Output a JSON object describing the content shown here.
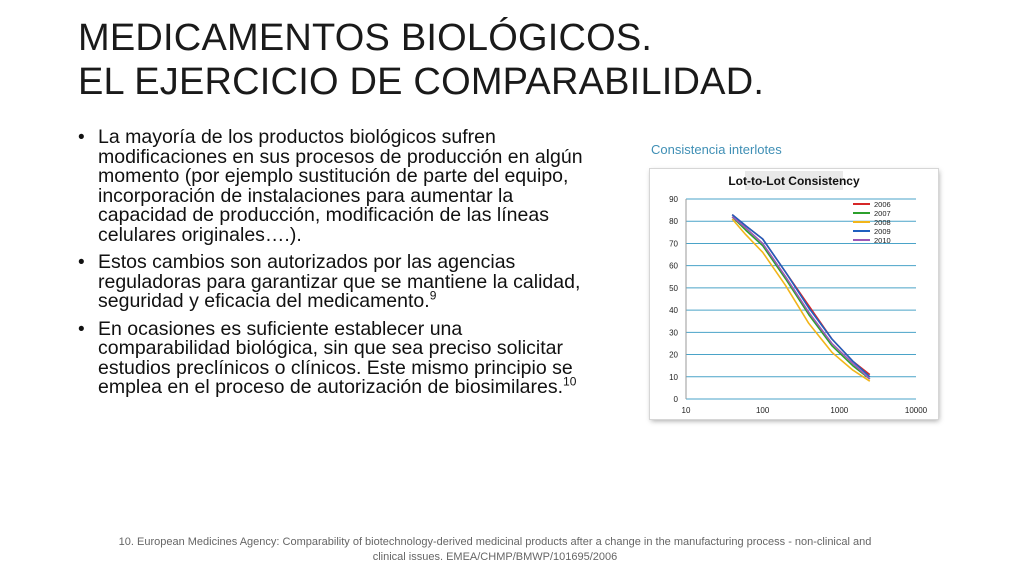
{
  "title": {
    "line1": "MEDICAMENTOS BIOLÓGICOS.",
    "line2": "EL EJERCICIO DE COMPARABILIDAD."
  },
  "bullets": [
    {
      "text": "La mayoría de los productos biológicos sufren modificaciones en sus procesos de producción en algún momento (por ejemplo sustitución de parte del equipo, incorporación de instalaciones para aumentar la capacidad de producción, modificación de las líneas celulares originales….).",
      "sup": ""
    },
    {
      "text": "Estos cambios son autorizados por las agencias reguladoras para garantizar que se mantiene la calidad, seguridad y eficacia del medicamento.",
      "sup": "9"
    },
    {
      "text": "En ocasiones es suficiente establecer una comparabilidad biológica, sin que sea preciso solicitar estudios preclínicos o clínicos. Este mismo principio se emplea en el proceso de autorización de biosimilares.",
      "sup": "10"
    }
  ],
  "figure_caption": "Consistencia interlotes",
  "footnote": "10. European Medicines Agency: Comparability of biotechnology-derived medicinal products after a change in the manufacturing process - non-clinical and clinical issues. EMEA/CHMP/BMWP/101695/2006",
  "chart_data": {
    "type": "line",
    "title": "Lot-to-Lot Consistency",
    "xscale": "log",
    "xlim": [
      10,
      10000
    ],
    "ylim": [
      0,
      90
    ],
    "xticks": [
      10,
      100,
      1000,
      10000
    ],
    "xtick_labels": [
      "10",
      "100",
      "1000",
      "10000"
    ],
    "yticks": [
      0,
      10,
      20,
      30,
      40,
      50,
      60,
      70,
      80,
      90
    ],
    "grid": "horizontal",
    "legend": "top-right",
    "series": [
      {
        "name": "2006",
        "color": "#d62728",
        "x": [
          40,
          60,
          100,
          200,
          400,
          800,
          1500,
          2500
        ],
        "y": [
          83,
          78,
          72,
          57,
          42,
          27,
          17,
          11
        ]
      },
      {
        "name": "2007",
        "color": "#2ca02c",
        "x": [
          40,
          60,
          100,
          200,
          400,
          800,
          1500,
          2500
        ],
        "y": [
          82,
          76,
          69,
          54,
          38,
          24,
          15,
          9
        ]
      },
      {
        "name": "2008",
        "color": "#f2b51a",
        "x": [
          40,
          60,
          100,
          200,
          400,
          800,
          1500,
          2500
        ],
        "y": [
          81,
          74,
          66,
          51,
          34,
          21,
          13,
          8
        ]
      },
      {
        "name": "2009",
        "color": "#1f5fbf",
        "x": [
          40,
          60,
          100,
          200,
          400,
          800,
          1500,
          2500
        ],
        "y": [
          83,
          78,
          72,
          57,
          41,
          27,
          17,
          10
        ]
      },
      {
        "name": "2010",
        "color": "#9b59b6",
        "x": [
          40,
          60,
          100,
          200,
          400,
          800,
          1500,
          2500
        ],
        "y": [
          82,
          77,
          70,
          55,
          39,
          25,
          16,
          9
        ]
      }
    ]
  }
}
